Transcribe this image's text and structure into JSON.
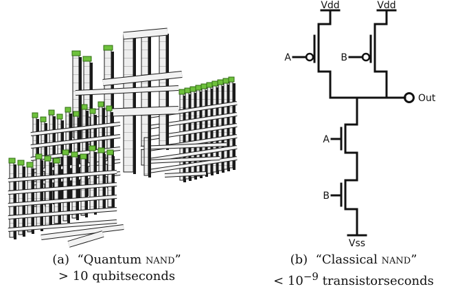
{
  "figure_a": {
    "label": "(a)",
    "title_open": "“Quantum ",
    "title_sc": "nand",
    "title_close": "”",
    "cost_sym": ">",
    "cost_value": "10",
    "cost_unit": "qubitseconds",
    "colors": {
      "block": "#ececec",
      "edge": "#1a1a1a",
      "qubit": "#6ec13c"
    }
  },
  "figure_b": {
    "label": "(b)",
    "title_open": "“Classical ",
    "title_sc": "nand",
    "title_close": "”",
    "cost_sym": "<",
    "cost_base": "10",
    "cost_exp": "−9",
    "cost_unit": "transistorseconds",
    "labels": {
      "vdd": "Vdd",
      "vss": "Vss",
      "a": "A",
      "b": "B",
      "out": "Out"
    }
  }
}
